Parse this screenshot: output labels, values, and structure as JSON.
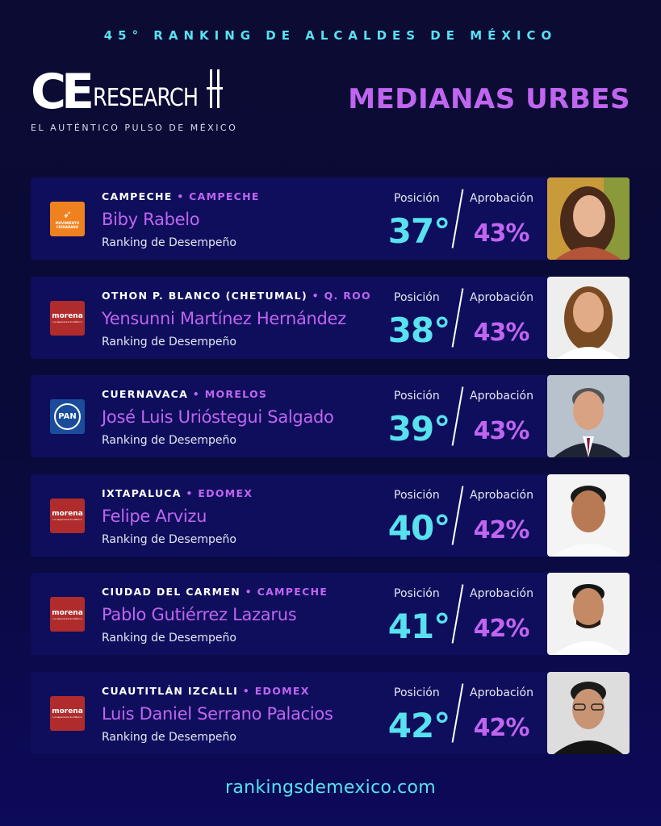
{
  "header": {
    "top_title": "45° RANKING DE ALCALDES DE MÉXICO",
    "logo_ce": "CE",
    "logo_research": "RESEARCH",
    "tagline": "EL AUTÉNTICO PULSO DE MÉXICO",
    "section_title": "MEDIANAS URBES"
  },
  "labels": {
    "position": "Posición",
    "approval": "Aprobación",
    "subtitle": "Ranking de Desempeño"
  },
  "mayors": [
    {
      "city": "CAMPECHE",
      "state": "CAMPECHE",
      "name": "Biby Rabelo",
      "party": "MOVIMIENTO CIUDADANO",
      "position": "37°",
      "approval": "43%"
    },
    {
      "city": "OTHON P. BLANCO (CHETUMAL)",
      "state": "Q. ROO",
      "name": "Yensunni Martínez Hernández",
      "party": "morena",
      "position": "38°",
      "approval": "43%"
    },
    {
      "city": "CUERNAVACA",
      "state": "MORELOS",
      "name": "José Luis Urióstegui Salgado",
      "party": "PAN",
      "position": "39°",
      "approval": "43%"
    },
    {
      "city": "IXTAPALUCA",
      "state": "EDOMEX",
      "name": "Felipe Arvizu",
      "party": "morena",
      "position": "40°",
      "approval": "42%"
    },
    {
      "city": "CIUDAD DEL CARMEN",
      "state": "CAMPECHE",
      "name": "Pablo Gutiérrez Lazarus",
      "party": "morena",
      "position": "41°",
      "approval": "42%"
    },
    {
      "city": "CUAUTITLÁN IZCALLI",
      "state": "EDOMEX",
      "name": "Luis Daniel Serrano Palacios",
      "party": "morena",
      "position": "42°",
      "approval": "42%"
    }
  ],
  "footer": {
    "url": "rankingsdemexico.com"
  },
  "colors": {
    "accent_cyan": "#58e1ef",
    "accent_purple": "#c065f0",
    "card_bg": "#0e0e5c"
  }
}
